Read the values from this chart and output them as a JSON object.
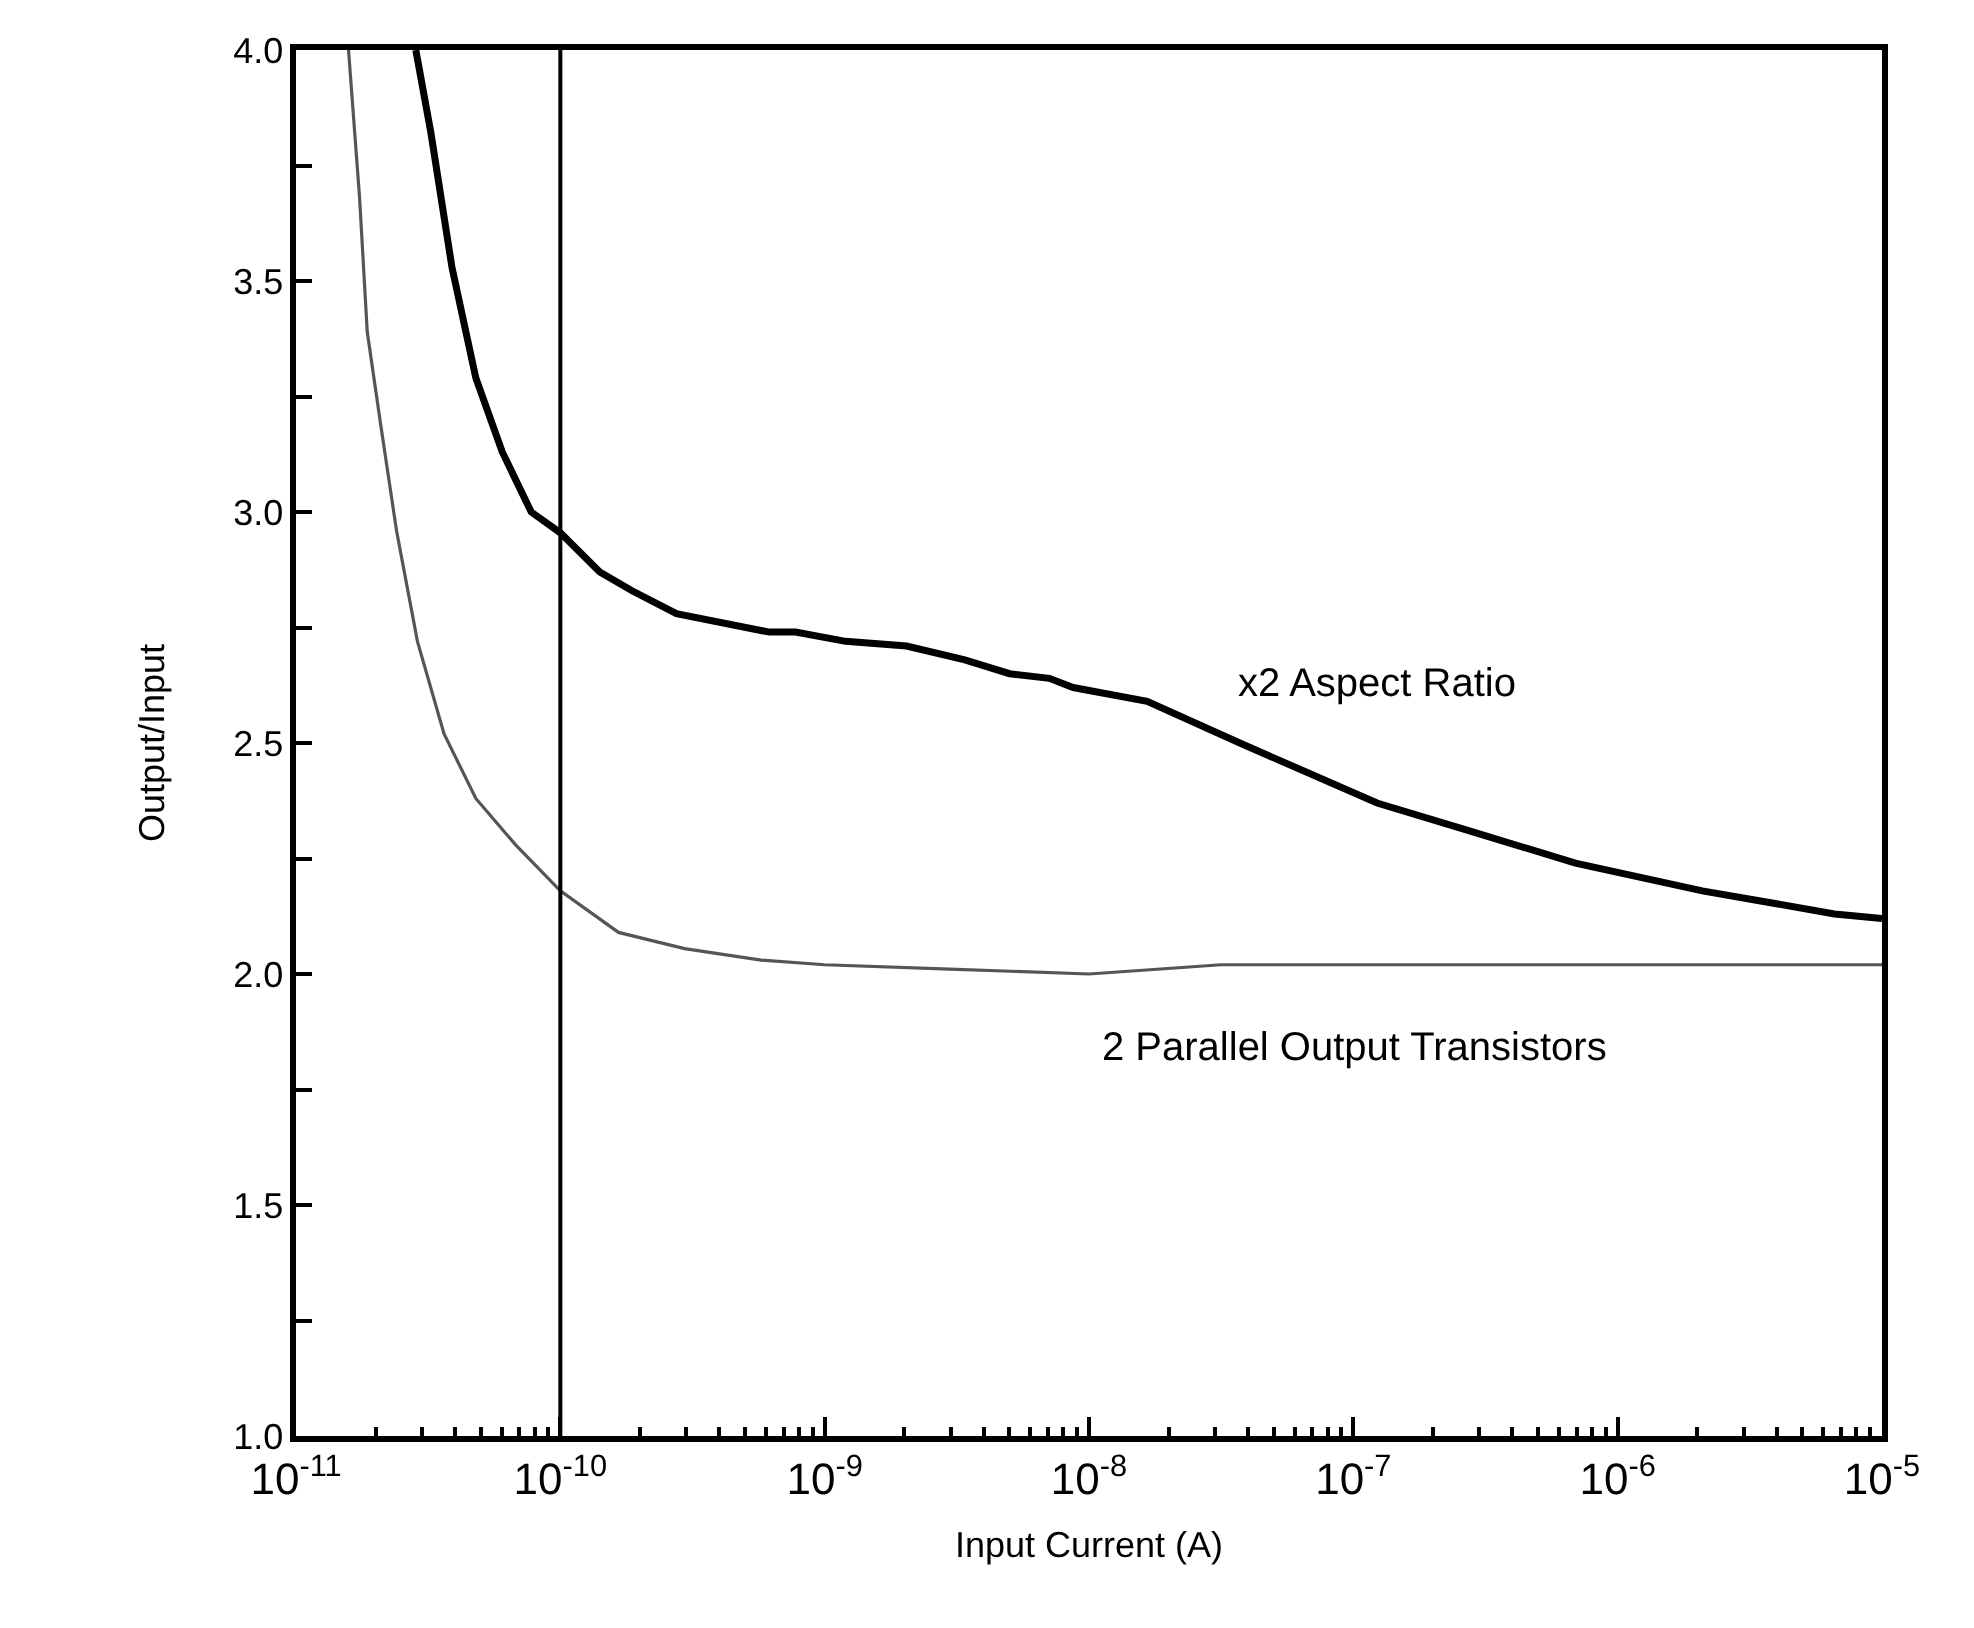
{
  "chart_data": {
    "type": "line",
    "xlabel": "Input Current (A)",
    "ylabel": "Output/Input",
    "log": "x",
    "xlim": [
      1e-11,
      1e-05
    ],
    "xticks": [
      {
        "value": 1e-11,
        "label": "10$^{-11}$"
      },
      {
        "value": 1e-10,
        "label": "10$^{-10}$"
      },
      {
        "value": 1e-09,
        "label": "10$^{-9}$"
      },
      {
        "value": 1e-08,
        "label": "10$^{-8}$"
      },
      {
        "value": 1e-07,
        "label": "10$^{-7}$"
      },
      {
        "value": 1e-06,
        "label": "10$^{-6}$"
      },
      {
        "value": 1e-05,
        "label": "10$^{-5}$"
      }
    ],
    "ylim": [
      1.0,
      4.0
    ],
    "yticks": [
      {
        "value": 1.0,
        "label": "1.0"
      },
      {
        "value": 1.25,
        "label": null
      },
      {
        "value": 1.5,
        "label": "1.5"
      },
      {
        "value": 1.75,
        "label": null
      },
      {
        "value": 2.0,
        "label": "2.0"
      },
      {
        "value": 2.25,
        "label": null
      },
      {
        "value": 2.5,
        "label": "2.5"
      },
      {
        "value": 2.75,
        "label": null
      },
      {
        "value": 3.0,
        "label": "3.0"
      },
      {
        "value": 3.25,
        "label": null
      },
      {
        "value": 3.5,
        "label": "3.5"
      },
      {
        "value": 3.75,
        "label": null
      },
      {
        "value": 4.0,
        "label": "4.0"
      }
    ],
    "legend": false,
    "marker": "none",
    "ref_lines": [
      {
        "axis": "x",
        "value": 1e-10,
        "color": "#000000",
        "line_style": "solid"
      }
    ],
    "series": [
      {
        "name": "x2 Aspect Ratio",
        "color": "#000000",
        "line_style": "solid",
        "x": [
          2.84e-11,
          3.24e-11,
          3.89e-11,
          4.79e-11,
          6.03e-11,
          7.76e-11,
          1e-10,
          1.41e-10,
          1.86e-10,
          2.75e-10,
          6.17e-10,
          7.76e-10,
          1.2e-09,
          2.04e-09,
          3.39e-09,
          5.01e-09,
          7.08e-09,
          8.71e-09,
          1.66e-08,
          3.72e-08,
          1.23e-07,
          2.75e-07,
          6.92e-07,
          2.09e-06,
          6.61e-06,
          1e-05
        ],
        "values": [
          4.0,
          3.82,
          3.53,
          3.29,
          3.13,
          3.0,
          2.955,
          2.87,
          2.83,
          2.78,
          2.74,
          2.74,
          2.72,
          2.71,
          2.68,
          2.65,
          2.64,
          2.62,
          2.59,
          2.5,
          2.37,
          2.31,
          2.24,
          2.18,
          2.13,
          2.12
        ]
      },
      {
        "name": "2 Parallel Output Transistors",
        "color": "#555555",
        "line_style": "solid",
        "x": [
          1.58e-11,
          1.74e-11,
          1.86e-11,
          2.09e-11,
          2.4e-11,
          2.88e-11,
          3.63e-11,
          4.79e-11,
          6.76e-11,
          1e-10,
          1.66e-10,
          2.95e-10,
          5.75e-10,
          1e-09,
          3.16e-09,
          1e-08,
          3.16e-08,
          1e-07,
          3.16e-07,
          1e-06,
          3.16e-06,
          1e-05
        ],
        "values": [
          4.0,
          3.68,
          3.39,
          3.19,
          2.96,
          2.72,
          2.52,
          2.38,
          2.28,
          2.18,
          2.09,
          2.055,
          2.03,
          2.02,
          2.01,
          2.0,
          2.02,
          2.02,
          2.02,
          2.02,
          2.02,
          2.02
        ]
      }
    ]
  }
}
